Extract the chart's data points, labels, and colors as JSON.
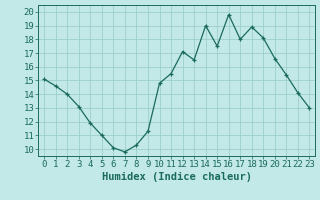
{
  "x": [
    0,
    1,
    2,
    3,
    4,
    5,
    6,
    7,
    8,
    9,
    10,
    11,
    12,
    13,
    14,
    15,
    16,
    17,
    18,
    19,
    20,
    21,
    22,
    23
  ],
  "y": [
    15.1,
    14.6,
    14.0,
    13.1,
    11.9,
    11.0,
    10.1,
    9.8,
    10.3,
    11.3,
    14.8,
    15.5,
    17.1,
    16.5,
    19.0,
    17.5,
    19.8,
    18.0,
    18.9,
    18.1,
    16.6,
    15.4,
    14.1,
    13.0
  ],
  "line_color": "#1a6b5a",
  "bg_color": "#c2e8e8",
  "grid_color": "#9dcece",
  "xlabel": "Humidex (Indice chaleur)",
  "ylabel_ticks": [
    10,
    11,
    12,
    13,
    14,
    15,
    16,
    17,
    18,
    19,
    20
  ],
  "xlim": [
    -0.5,
    23.5
  ],
  "ylim": [
    9.5,
    20.5
  ],
  "tick_color": "#1a6b5a",
  "label_color": "#1a6b5a",
  "font_size_axis": 6.5,
  "font_size_xlabel": 7.5
}
